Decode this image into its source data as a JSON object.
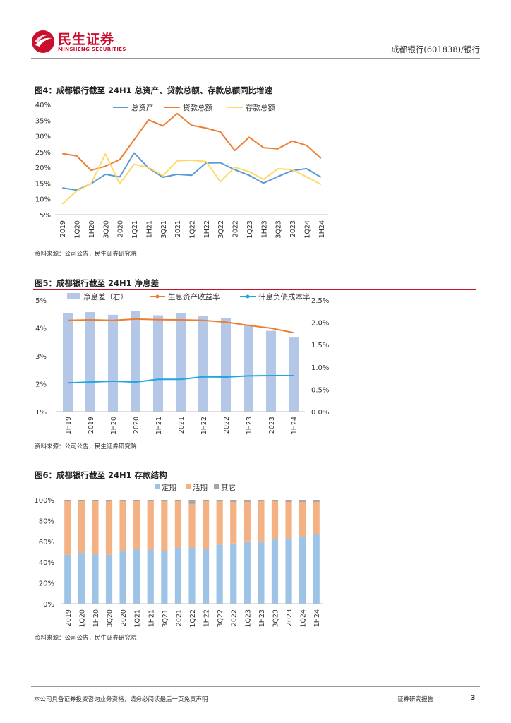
{
  "header": {
    "brand_cn": "民生证券",
    "brand_en": "MINSHENG SECURITIES",
    "report_tag": "成都银行(601838)/银行"
  },
  "colors": {
    "brand_red": "#c8102e",
    "blue": "#5b9bd5",
    "orange": "#ed7d31",
    "yellow": "#ffd966",
    "bar_blue": "#b4c7e7",
    "cyan": "#1fa6e0",
    "stack_blue": "#9dc3e6",
    "stack_orange": "#f4b183",
    "stack_gray": "#a5a5a5"
  },
  "chart_data": [
    {
      "id": "fig4",
      "type": "line",
      "title": "图4：成都银行截至 24H1 总资产、贷款总额、存款总额同比增速",
      "source": "资料来源：公司公告，民生证券研究院",
      "categories": [
        "2019",
        "1Q20",
        "1H20",
        "3Q20",
        "2020",
        "1Q21",
        "1H21",
        "3Q21",
        "2021",
        "1Q22",
        "1H22",
        "3Q22",
        "2022",
        "1Q23",
        "1H23",
        "3Q23",
        "2023",
        "1Q24",
        "1H24"
      ],
      "y_ticks": [
        "40%",
        "35%",
        "30%",
        "25%",
        "20%",
        "15%",
        "10%",
        "5%"
      ],
      "ylim": [
        5,
        40
      ],
      "legend_position": "top",
      "series": [
        {
          "name": "总资产",
          "color": "#5b9bd5",
          "values": [
            13.5,
            12.8,
            14.8,
            17.8,
            17.0,
            24.6,
            19.8,
            16.9,
            17.8,
            17.5,
            21.4,
            21.5,
            19.3,
            17.5,
            15.0,
            17.1,
            19.0,
            19.6,
            16.9
          ]
        },
        {
          "name": "贷款总额",
          "color": "#ed7d31",
          "values": [
            24.4,
            23.7,
            19.1,
            20.4,
            22.5,
            28.8,
            35.1,
            33.2,
            37.1,
            33.4,
            32.5,
            31.3,
            25.4,
            29.6,
            26.3,
            25.9,
            28.4,
            27.0,
            22.9
          ]
        },
        {
          "name": "存款总额",
          "color": "#ffd966",
          "values": [
            8.4,
            12.5,
            14.8,
            24.3,
            14.8,
            21.0,
            20.0,
            17.4,
            22.1,
            22.3,
            21.9,
            15.5,
            20.0,
            18.7,
            16.2,
            19.6,
            19.3,
            17.0,
            14.6
          ]
        }
      ]
    },
    {
      "id": "fig5",
      "type": "bar",
      "title": "图5：成都银行截至 24H1 净息差",
      "source": "资料来源：公司公告，民生证券研究院",
      "categories": [
        "1H19",
        "2019",
        "1H20",
        "2020",
        "1H21",
        "2021",
        "1H22",
        "2022",
        "1H23",
        "2023",
        "1H24"
      ],
      "y_left_ticks": [
        "5%",
        "4%",
        "3%",
        "2%",
        "1%"
      ],
      "y_right_ticks": [
        "2.5%",
        "2.0%",
        "1.5%",
        "1.0%",
        "0.5%",
        "0.0%"
      ],
      "ylim_left": [
        1,
        5
      ],
      "ylim_right": [
        0,
        2.5
      ],
      "legend_position": "top",
      "series": [
        {
          "name": "净息差（右）",
          "type": "bar",
          "axis": "right",
          "color": "#b4c7e7",
          "values": [
            2.21,
            2.23,
            2.17,
            2.26,
            2.16,
            2.21,
            2.15,
            2.09,
            1.95,
            1.81,
            1.66
          ]
        },
        {
          "name": "生息资产收益率",
          "type": "line",
          "axis": "left",
          "color": "#ed7d31",
          "values": [
            4.27,
            4.29,
            4.27,
            4.32,
            4.3,
            4.29,
            4.27,
            4.21,
            4.09,
            3.99,
            3.83
          ]
        },
        {
          "name": "计息负债成本率",
          "type": "line",
          "axis": "left",
          "color": "#1fa6e0",
          "values": [
            2.03,
            2.06,
            2.09,
            2.06,
            2.16,
            2.16,
            2.25,
            2.24,
            2.28,
            2.29,
            2.29
          ]
        }
      ]
    },
    {
      "id": "fig6",
      "type": "bar",
      "stacked": true,
      "title": "图6：成都银行截至 24H1 存款结构",
      "source": "资料来源：公司公告，民生证券研究院",
      "categories": [
        "2019",
        "1Q20",
        "1H20",
        "3Q20",
        "2020",
        "1Q21",
        "1H21",
        "3Q21",
        "2021",
        "1Q22",
        "1H22",
        "3Q22",
        "2022",
        "1Q23",
        "1H23",
        "3Q23",
        "2023",
        "1Q24",
        "1H24"
      ],
      "y_ticks": [
        "100%",
        "80%",
        "60%",
        "40%",
        "20%",
        "0%"
      ],
      "ylim": [
        0,
        100
      ],
      "legend_position": "top",
      "series": [
        {
          "name": "定期",
          "color": "#9dc3e6",
          "values": [
            47,
            49,
            48,
            47,
            51,
            53,
            52,
            51,
            54,
            54,
            53,
            57,
            58,
            60,
            60,
            62,
            63,
            65,
            67
          ]
        },
        {
          "name": "活期",
          "color": "#f4b183",
          "values": [
            52,
            50,
            51,
            52,
            48,
            46,
            47,
            48,
            45,
            42,
            46,
            42,
            40,
            38,
            39,
            37,
            35,
            33,
            31
          ]
        },
        {
          "name": "其它",
          "color": "#a5a5a5",
          "values": [
            1,
            1,
            1,
            1,
            1,
            1,
            1,
            1,
            1,
            4,
            1,
            1,
            2,
            2,
            1,
            1,
            2,
            2,
            2
          ]
        }
      ]
    }
  ],
  "footer": {
    "disclaimer": "本公司具备证券投资咨询业务资格，请务必阅读最后一页免责声明",
    "report_type": "证券研究报告",
    "page": "3"
  }
}
